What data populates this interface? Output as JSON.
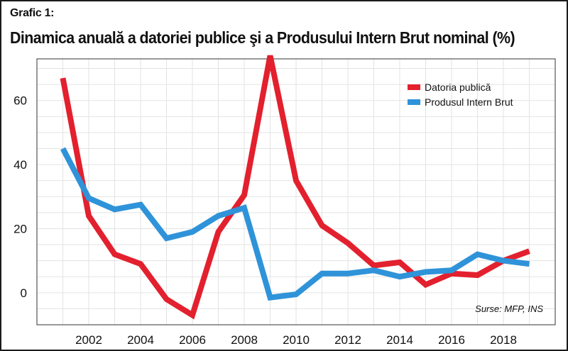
{
  "chart_label": "Grafic 1:",
  "chart_title": "Dinamica anuală a datoriei publice şi a Produsului Intern Brut nominal (%)",
  "source": "Surse: MFP, INS",
  "chart_data": {
    "type": "line",
    "title": "Dinamica anuală a datoriei publice şi a Produsului Intern Brut nominal (%)",
    "xlabel": "",
    "ylabel": "",
    "x": [
      2001,
      2002,
      2003,
      2004,
      2005,
      2006,
      2007,
      2008,
      2009,
      2010,
      2011,
      2012,
      2013,
      2014,
      2015,
      2016,
      2017,
      2018,
      2019
    ],
    "xlim": [
      2000,
      2020
    ],
    "ylim": [
      -10,
      73
    ],
    "x_ticks": [
      "2002",
      "2004",
      "2006",
      "2008",
      "2010",
      "2012",
      "2014",
      "2016",
      "2018"
    ],
    "y_ticks": [
      "0",
      "20",
      "40",
      "60"
    ],
    "grid": true,
    "legend_position": "top-right",
    "series": [
      {
        "name": "Datoria publică",
        "color": "#e3202e",
        "values": [
          67,
          24,
          12,
          9,
          -2,
          -7,
          19,
          30.5,
          74,
          35,
          21,
          15.5,
          8.5,
          9.5,
          2.5,
          6,
          5.5,
          10,
          13
        ]
      },
      {
        "name": "Produsul Intern Brut",
        "color": "#2f93d9",
        "values": [
          45,
          29.5,
          26,
          27.5,
          17,
          19,
          24,
          26.5,
          -1.5,
          -0.5,
          6,
          6,
          7,
          5,
          6.5,
          7,
          12,
          10,
          9
        ]
      }
    ]
  }
}
